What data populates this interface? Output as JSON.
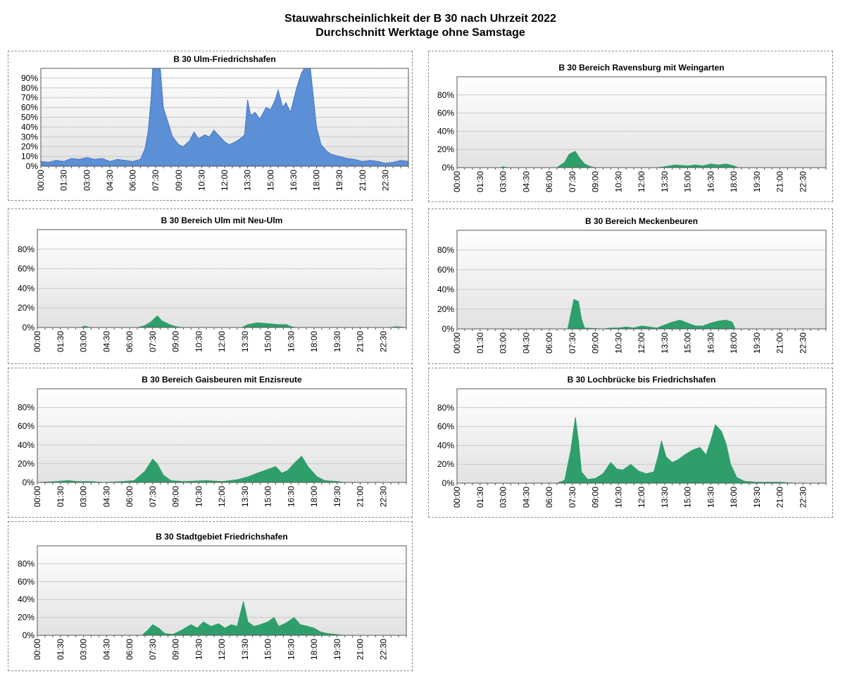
{
  "page": {
    "title_line1": "Stauwahrscheinlichkeit der B 30 nach Uhrzeit 2022",
    "title_line2": "Durchschnitt Werktage ohne Samstage"
  },
  "colors": {
    "blue_fill": "#5b8fd6",
    "blue_stroke": "#3d6fbf",
    "green_fill": "#2e9e6a",
    "grid": "#c8c8c8"
  },
  "chart_data": [
    {
      "id": "ulm-fn",
      "type": "area",
      "color": "blue",
      "title": "B 30 Ulm-Friedrichshafen",
      "ylim": [
        0,
        1
      ],
      "y_ticks": [
        "0%",
        "10%",
        "20%",
        "30%",
        "40%",
        "50%",
        "60%",
        "70%",
        "80%",
        "90%"
      ],
      "y_tick_values": [
        0,
        0.1,
        0.2,
        0.3,
        0.4,
        0.5,
        0.6,
        0.7,
        0.8,
        0.9
      ],
      "x_ticks": [
        "00:00",
        "01:30",
        "03:00",
        "04:30",
        "06:00",
        "07:30",
        "09:00",
        "10:30",
        "12:00",
        "13:30",
        "15:00",
        "16:30",
        "18:00",
        "19:30",
        "21:00",
        "22:30"
      ],
      "x_unit": "hours",
      "x_range": [
        0,
        24
      ],
      "points": [
        [
          0,
          0.05
        ],
        [
          0.5,
          0.04
        ],
        [
          1,
          0.06
        ],
        [
          1.5,
          0.05
        ],
        [
          2,
          0.08
        ],
        [
          2.5,
          0.07
        ],
        [
          3,
          0.09
        ],
        [
          3.5,
          0.07
        ],
        [
          4,
          0.08
        ],
        [
          4.5,
          0.05
        ],
        [
          5,
          0.07
        ],
        [
          5.5,
          0.06
        ],
        [
          6,
          0.05
        ],
        [
          6.5,
          0.07
        ],
        [
          6.8,
          0.18
        ],
        [
          7,
          0.35
        ],
        [
          7.2,
          0.7
        ],
        [
          7.3,
          1.0
        ],
        [
          7.8,
          1.0
        ],
        [
          8,
          0.6
        ],
        [
          8.3,
          0.45
        ],
        [
          8.6,
          0.3
        ],
        [
          9,
          0.22
        ],
        [
          9.3,
          0.2
        ],
        [
          9.7,
          0.26
        ],
        [
          10,
          0.35
        ],
        [
          10.3,
          0.28
        ],
        [
          10.7,
          0.32
        ],
        [
          11,
          0.3
        ],
        [
          11.3,
          0.37
        ],
        [
          11.7,
          0.3
        ],
        [
          12,
          0.25
        ],
        [
          12.3,
          0.22
        ],
        [
          12.7,
          0.25
        ],
        [
          13,
          0.28
        ],
        [
          13.3,
          0.32
        ],
        [
          13.5,
          0.68
        ],
        [
          13.7,
          0.52
        ],
        [
          14,
          0.55
        ],
        [
          14.3,
          0.48
        ],
        [
          14.7,
          0.6
        ],
        [
          15,
          0.58
        ],
        [
          15.3,
          0.68
        ],
        [
          15.5,
          0.78
        ],
        [
          15.8,
          0.6
        ],
        [
          16,
          0.65
        ],
        [
          16.3,
          0.55
        ],
        [
          16.7,
          0.8
        ],
        [
          17,
          0.95
        ],
        [
          17.2,
          1.0
        ],
        [
          17.6,
          1.0
        ],
        [
          17.8,
          0.7
        ],
        [
          18,
          0.4
        ],
        [
          18.3,
          0.22
        ],
        [
          18.7,
          0.15
        ],
        [
          19,
          0.12
        ],
        [
          19.5,
          0.1
        ],
        [
          20,
          0.08
        ],
        [
          20.5,
          0.07
        ],
        [
          21,
          0.05
        ],
        [
          21.5,
          0.06
        ],
        [
          22,
          0.05
        ],
        [
          22.5,
          0.03
        ],
        [
          23,
          0.04
        ],
        [
          23.5,
          0.06
        ],
        [
          24,
          0.05
        ]
      ]
    },
    {
      "id": "ravensburg",
      "type": "area",
      "color": "green",
      "title": "B 30 Bereich Ravensburg mit Weingarten",
      "ylim": [
        0,
        1
      ],
      "y_ticks": [
        "0%",
        "20%",
        "40%",
        "60%",
        "80%"
      ],
      "y_tick_values": [
        0,
        0.2,
        0.4,
        0.6,
        0.8
      ],
      "x_ticks": [
        "00:00",
        "01:30",
        "03:00",
        "04:30",
        "06:00",
        "07:30",
        "09:00",
        "10:30",
        "12:00",
        "13:30",
        "15:00",
        "16:30",
        "18:00",
        "19:30",
        "21:00",
        "22:30"
      ],
      "x_unit": "hours",
      "x_range": [
        0,
        24
      ],
      "points": [
        [
          0,
          0
        ],
        [
          2.8,
          0
        ],
        [
          3,
          0.01
        ],
        [
          3.3,
          0
        ],
        [
          6.5,
          0
        ],
        [
          7,
          0.06
        ],
        [
          7.3,
          0.15
        ],
        [
          7.7,
          0.18
        ],
        [
          8,
          0.1
        ],
        [
          8.3,
          0.04
        ],
        [
          8.7,
          0.01
        ],
        [
          9,
          0
        ],
        [
          13,
          0
        ],
        [
          13.5,
          0.01
        ],
        [
          14.2,
          0.03
        ],
        [
          15,
          0.02
        ],
        [
          15.5,
          0.03
        ],
        [
          16,
          0.02
        ],
        [
          16.5,
          0.04
        ],
        [
          17,
          0.03
        ],
        [
          17.5,
          0.04
        ],
        [
          18,
          0.02
        ],
        [
          18.3,
          0
        ],
        [
          24,
          0
        ]
      ]
    },
    {
      "id": "ulm-neuulm",
      "type": "area",
      "color": "green",
      "title": "B 30 Bereich Ulm mit Neu-Ulm",
      "ylim": [
        0,
        1
      ],
      "y_ticks": [
        "0%",
        "20%",
        "40%",
        "60%",
        "80%"
      ],
      "y_tick_values": [
        0,
        0.2,
        0.4,
        0.6,
        0.8
      ],
      "x_ticks": [
        "00:00",
        "01:30",
        "03:00",
        "04:30",
        "06:00",
        "07:30",
        "09:00",
        "10:30",
        "12:00",
        "13:30",
        "15:00",
        "16:30",
        "18:00",
        "19:30",
        "21:00",
        "22:30"
      ],
      "x_unit": "hours",
      "x_range": [
        0,
        24
      ],
      "points": [
        [
          0,
          0
        ],
        [
          2.8,
          0
        ],
        [
          3.1,
          0.015
        ],
        [
          3.4,
          0
        ],
        [
          6.5,
          0
        ],
        [
          7,
          0.02
        ],
        [
          7.4,
          0.06
        ],
        [
          7.8,
          0.12
        ],
        [
          8.1,
          0.07
        ],
        [
          8.6,
          0.03
        ],
        [
          9,
          0.01
        ],
        [
          9.4,
          0
        ],
        [
          13.3,
          0
        ],
        [
          13.7,
          0.03
        ],
        [
          14.3,
          0.05
        ],
        [
          15,
          0.04
        ],
        [
          15.7,
          0.03
        ],
        [
          16.2,
          0.03
        ],
        [
          16.5,
          0.01
        ],
        [
          16.8,
          0
        ],
        [
          23,
          0
        ],
        [
          23.3,
          0.01
        ],
        [
          24,
          0
        ]
      ]
    },
    {
      "id": "meckenbeuren",
      "type": "area",
      "color": "green",
      "title": "B 30 Bereich Meckenbeuren",
      "ylim": [
        0,
        1
      ],
      "y_ticks": [
        "0%",
        "20%",
        "40%",
        "60%",
        "80%"
      ],
      "y_tick_values": [
        0,
        0.2,
        0.4,
        0.6,
        0.8
      ],
      "x_ticks": [
        "00:00",
        "01:30",
        "03:00",
        "04:30",
        "06:00",
        "07:30",
        "09:00",
        "10:30",
        "12:00",
        "13:30",
        "15:00",
        "16:30",
        "18:00",
        "19:30",
        "21:00",
        "22:30"
      ],
      "x_unit": "hours",
      "x_range": [
        0,
        24
      ],
      "points": [
        [
          0,
          0
        ],
        [
          7.2,
          0
        ],
        [
          7.4,
          0.15
        ],
        [
          7.6,
          0.3
        ],
        [
          7.9,
          0.28
        ],
        [
          8.1,
          0.1
        ],
        [
          8.3,
          0.01
        ],
        [
          9.5,
          0
        ],
        [
          10,
          0.01
        ],
        [
          10.5,
          0.01
        ],
        [
          11,
          0.02
        ],
        [
          11.5,
          0.01
        ],
        [
          12,
          0.03
        ],
        [
          12.5,
          0.02
        ],
        [
          13,
          0.01
        ],
        [
          13.5,
          0.04
        ],
        [
          14,
          0.07
        ],
        [
          14.5,
          0.09
        ],
        [
          15,
          0.06
        ],
        [
          15.5,
          0.03
        ],
        [
          16,
          0.03
        ],
        [
          16.5,
          0.06
        ],
        [
          17,
          0.08
        ],
        [
          17.5,
          0.09
        ],
        [
          17.9,
          0.07
        ],
        [
          18.1,
          0
        ],
        [
          24,
          0
        ]
      ]
    },
    {
      "id": "gaisbeuren",
      "type": "area",
      "color": "green",
      "title": "B 30 Bereich Gaisbeuren mit Enzisreute",
      "ylim": [
        0,
        1
      ],
      "y_ticks": [
        "0%",
        "20%",
        "40%",
        "60%",
        "80%"
      ],
      "y_tick_values": [
        0,
        0.2,
        0.4,
        0.6,
        0.8
      ],
      "x_ticks": [
        "00:00",
        "01:30",
        "03:00",
        "04:30",
        "06:00",
        "07:30",
        "09:00",
        "10:30",
        "12:00",
        "13:30",
        "15:00",
        "16:30",
        "18:00",
        "19:30",
        "21:00",
        "22:30"
      ],
      "x_unit": "hours",
      "x_range": [
        0,
        24
      ],
      "points": [
        [
          0,
          0
        ],
        [
          1.2,
          0.01
        ],
        [
          2,
          0.02
        ],
        [
          2.6,
          0.01
        ],
        [
          3.5,
          0.01
        ],
        [
          4.3,
          0
        ],
        [
          5.5,
          0.01
        ],
        [
          6.3,
          0.02
        ],
        [
          7,
          0.12
        ],
        [
          7.5,
          0.25
        ],
        [
          7.8,
          0.2
        ],
        [
          8.2,
          0.08
        ],
        [
          8.7,
          0.02
        ],
        [
          9.5,
          0.01
        ],
        [
          11,
          0.02
        ],
        [
          12,
          0.01
        ],
        [
          13,
          0.03
        ],
        [
          13.7,
          0.06
        ],
        [
          14.3,
          0.1
        ],
        [
          15,
          0.14
        ],
        [
          15.5,
          0.17
        ],
        [
          15.9,
          0.1
        ],
        [
          16.3,
          0.13
        ],
        [
          16.8,
          0.22
        ],
        [
          17.2,
          0.28
        ],
        [
          17.6,
          0.17
        ],
        [
          18.2,
          0.06
        ],
        [
          18.7,
          0.02
        ],
        [
          19.5,
          0.01
        ],
        [
          20,
          0
        ],
        [
          24,
          0
        ]
      ]
    },
    {
      "id": "lochbruecke",
      "type": "area",
      "color": "green",
      "title": "B 30 Lochbrücke bis Friedrichshafen",
      "ylim": [
        0,
        1
      ],
      "y_ticks": [
        "0%",
        "20%",
        "40%",
        "60%",
        "80%"
      ],
      "y_tick_values": [
        0,
        0.2,
        0.4,
        0.6,
        0.8
      ],
      "x_ticks": [
        "00:00",
        "01:30",
        "03:00",
        "04:30",
        "06:00",
        "07:30",
        "09:00",
        "10:30",
        "12:00",
        "13:30",
        "15:00",
        "16:30",
        "18:00",
        "19:30",
        "21:00",
        "22:30"
      ],
      "x_unit": "hours",
      "x_range": [
        0,
        24
      ],
      "points": [
        [
          0,
          0
        ],
        [
          6.5,
          0
        ],
        [
          7,
          0.03
        ],
        [
          7.4,
          0.35
        ],
        [
          7.7,
          0.7
        ],
        [
          7.9,
          0.45
        ],
        [
          8.1,
          0.12
        ],
        [
          8.5,
          0.04
        ],
        [
          9,
          0.05
        ],
        [
          9.5,
          0.1
        ],
        [
          10,
          0.22
        ],
        [
          10.4,
          0.15
        ],
        [
          10.8,
          0.14
        ],
        [
          11.3,
          0.2
        ],
        [
          11.8,
          0.13
        ],
        [
          12.3,
          0.1
        ],
        [
          12.8,
          0.12
        ],
        [
          13.1,
          0.3
        ],
        [
          13.3,
          0.45
        ],
        [
          13.6,
          0.28
        ],
        [
          14,
          0.22
        ],
        [
          14.4,
          0.25
        ],
        [
          14.8,
          0.3
        ],
        [
          15.3,
          0.35
        ],
        [
          15.8,
          0.38
        ],
        [
          16.2,
          0.3
        ],
        [
          16.5,
          0.45
        ],
        [
          16.8,
          0.62
        ],
        [
          17.2,
          0.55
        ],
        [
          17.5,
          0.42
        ],
        [
          17.8,
          0.2
        ],
        [
          18.2,
          0.06
        ],
        [
          18.7,
          0.02
        ],
        [
          19.5,
          0.01
        ],
        [
          21,
          0.01
        ],
        [
          22,
          0
        ],
        [
          24,
          0
        ]
      ]
    },
    {
      "id": "stadtgebiet-fn",
      "type": "area",
      "color": "green",
      "title": "B 30 Stadtgebiet Friedrichshafen",
      "ylim": [
        0,
        1
      ],
      "y_ticks": [
        "0%",
        "20%",
        "40%",
        "60%",
        "80%"
      ],
      "y_tick_values": [
        0,
        0.2,
        0.4,
        0.6,
        0.8
      ],
      "x_ticks": [
        "00:00",
        "01:30",
        "03:00",
        "04:30",
        "06:00",
        "07:30",
        "09:00",
        "10:30",
        "12:00",
        "13:30",
        "15:00",
        "16:30",
        "18:00",
        "19:30",
        "21:00",
        "22:30"
      ],
      "x_unit": "hours",
      "x_range": [
        0,
        24
      ],
      "points": [
        [
          0,
          0
        ],
        [
          6.8,
          0
        ],
        [
          7.2,
          0.06
        ],
        [
          7.5,
          0.12
        ],
        [
          7.9,
          0.08
        ],
        [
          8.3,
          0.02
        ],
        [
          8.8,
          0.01
        ],
        [
          9.3,
          0.05
        ],
        [
          10,
          0.12
        ],
        [
          10.4,
          0.08
        ],
        [
          10.8,
          0.15
        ],
        [
          11.3,
          0.1
        ],
        [
          11.8,
          0.13
        ],
        [
          12.2,
          0.08
        ],
        [
          12.6,
          0.12
        ],
        [
          13,
          0.1
        ],
        [
          13.4,
          0.38
        ],
        [
          13.7,
          0.15
        ],
        [
          14.1,
          0.1
        ],
        [
          14.5,
          0.12
        ],
        [
          15,
          0.15
        ],
        [
          15.4,
          0.2
        ],
        [
          15.7,
          0.1
        ],
        [
          16.2,
          0.14
        ],
        [
          16.7,
          0.2
        ],
        [
          17.1,
          0.12
        ],
        [
          17.6,
          0.1
        ],
        [
          18,
          0.08
        ],
        [
          18.4,
          0.04
        ],
        [
          18.9,
          0.02
        ],
        [
          19.4,
          0.01
        ],
        [
          20,
          0
        ],
        [
          24,
          0
        ]
      ]
    }
  ]
}
